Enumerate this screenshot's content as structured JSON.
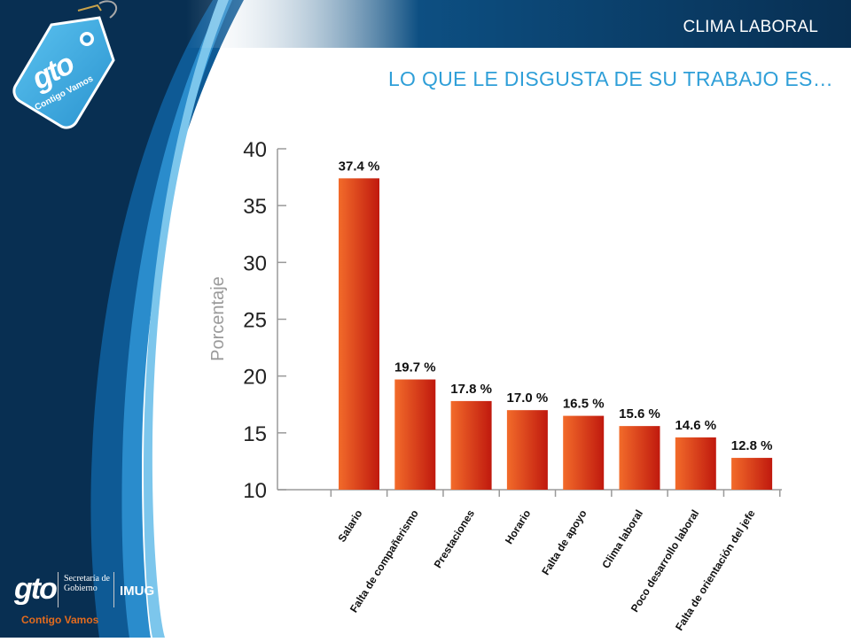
{
  "header": {
    "section_label": "CLIMA LABORAL",
    "title": "LO QUE LE DISGUSTA DE SU TRABAJO ES…"
  },
  "logo": {
    "brand": "gto",
    "tagline": "Contigo Vamos"
  },
  "footer": {
    "brand": "gto",
    "secretaria": "Secretaría de Gobierno",
    "imug": "IMUG",
    "tagline": "Contigo Vamos"
  },
  "colors": {
    "navy": "#0b3d66",
    "sky": "#2f9fd8",
    "bar_light": "#f26b2a",
    "bar_dark": "#c0190e",
    "axis": "#9a9a9a",
    "brand_orange": "#e36b1e"
  },
  "chart_data": {
    "type": "bar",
    "title": "",
    "xlabel": "",
    "ylabel": "Porcentaje",
    "ylim": [
      10,
      40
    ],
    "yticks": [
      10,
      15,
      20,
      25,
      30,
      35,
      40
    ],
    "categories": [
      "Salario",
      "Falta de compañerismo",
      "Prestaciones",
      "Horario",
      "Falta de apoyo",
      "Clima laboral",
      "Poco desarrollo laboral",
      "Falta de orientación del jefe"
    ],
    "values": [
      37.4,
      19.7,
      17.8,
      17.0,
      16.5,
      15.6,
      14.6,
      12.8
    ],
    "value_labels": [
      "37.4 %",
      "19.7 %",
      "17.8 %",
      "17.0 %",
      "16.5 %",
      "15.6 %",
      "14.6 %",
      "12.8 %"
    ],
    "grid": false,
    "legend": "none"
  }
}
